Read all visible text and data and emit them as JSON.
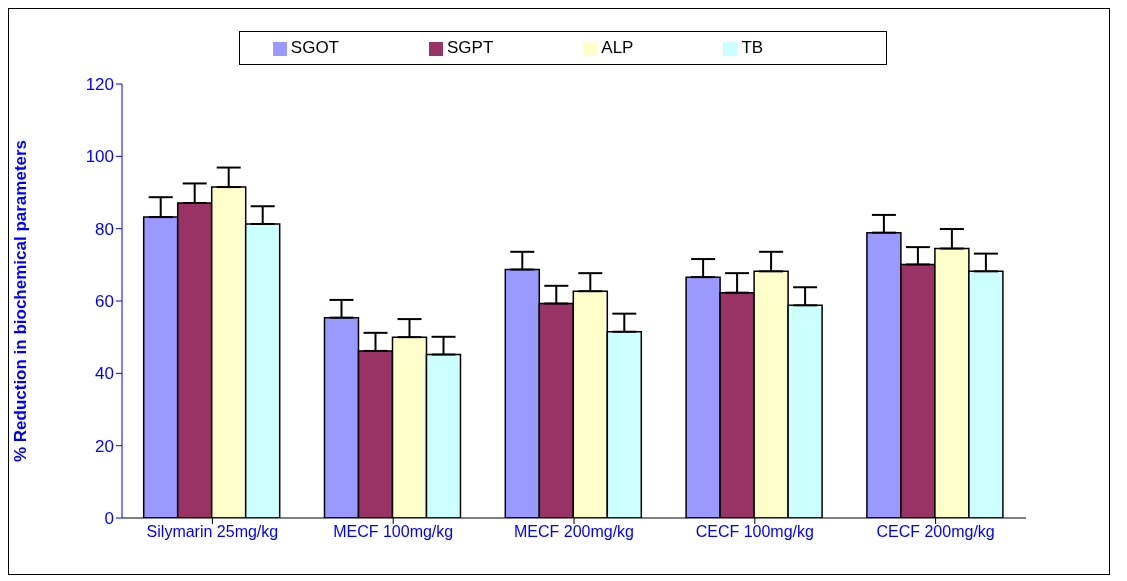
{
  "chart_data": {
    "type": "bar",
    "ylabel": "% Reduction in biochemical parameters",
    "categories": [
      "Silymarin 25mg/kg",
      "MECF 100mg/kg",
      "MECF 200mg/kg",
      "CECF 100mg/kg",
      "CECF 200mg/kg"
    ],
    "series": [
      {
        "name": "SGOT",
        "color": "#9999ff",
        "values": [
          83.2,
          55.4,
          68.7,
          66.6,
          78.9
        ],
        "errors": [
          [
            83.2,
            88.7
          ],
          [
            55.4,
            60.3
          ],
          [
            68.7,
            73.6
          ],
          [
            66.6,
            71.6
          ],
          [
            78.9,
            83.8
          ]
        ]
      },
      {
        "name": "SGPT",
        "color": "#993366",
        "values": [
          87.1,
          46.2,
          59.3,
          62.3,
          70.1
        ],
        "errors": [
          [
            87.1,
            92.5
          ],
          [
            46.2,
            51.2
          ],
          [
            59.3,
            64.2
          ],
          [
            62.3,
            67.7
          ],
          [
            70.1,
            74.9
          ]
        ]
      },
      {
        "name": "ALP",
        "color": "#ffffcc",
        "values": [
          91.5,
          50.0,
          62.7,
          68.2,
          74.5
        ],
        "errors": [
          [
            91.5,
            96.9
          ],
          [
            50.0,
            55.0
          ],
          [
            62.7,
            67.7
          ],
          [
            68.2,
            73.6
          ],
          [
            74.5,
            79.9
          ]
        ]
      },
      {
        "name": "TB",
        "color": "#ccffff",
        "values": [
          81.3,
          45.2,
          51.5,
          58.8,
          68.2
        ],
        "errors": [
          [
            81.3,
            86.2
          ],
          [
            45.2,
            50.1
          ],
          [
            51.5,
            56.5
          ],
          [
            58.8,
            63.8
          ],
          [
            68.2,
            73.1
          ]
        ]
      }
    ],
    "ylim": [
      0,
      120
    ],
    "yticks": [
      0,
      20,
      40,
      60,
      80,
      100,
      120
    ],
    "grid": false,
    "legend": "top"
  }
}
